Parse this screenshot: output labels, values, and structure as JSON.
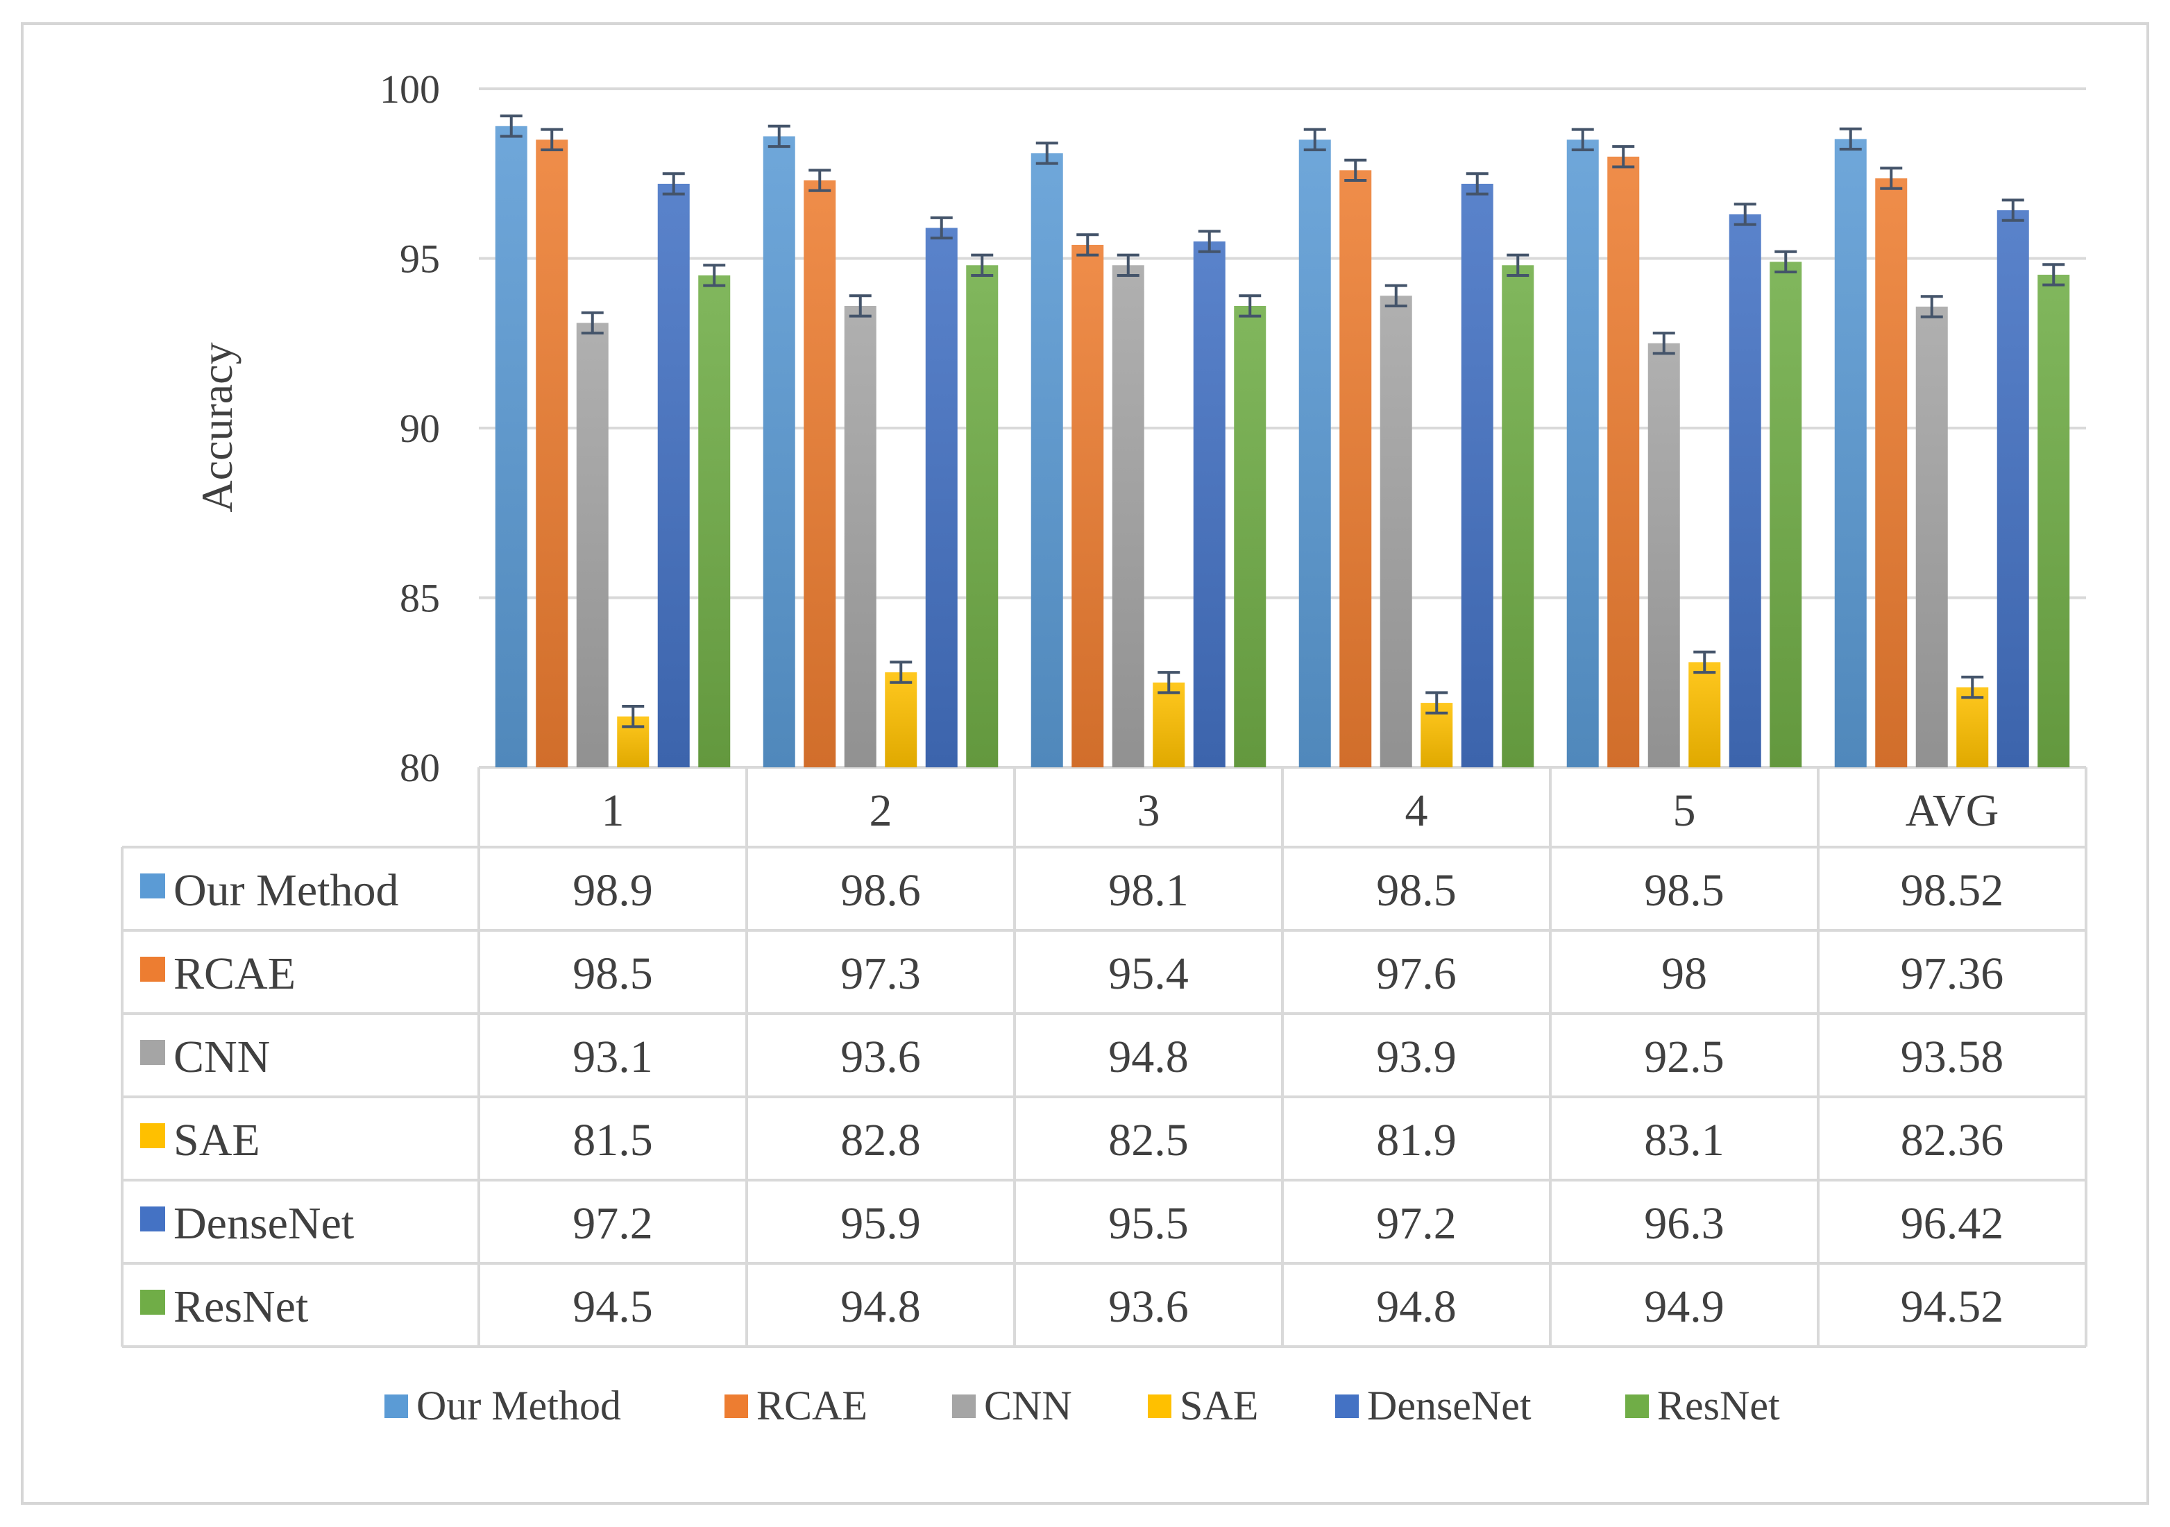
{
  "chart_data": {
    "type": "bar",
    "title": "",
    "xlabel": "",
    "ylabel": "Accuracy",
    "ylim": [
      80,
      100
    ],
    "yticks": [
      80,
      85,
      90,
      95,
      100
    ],
    "grid": true,
    "error_bars": true,
    "legend_position": "bottom",
    "data_table": true,
    "categories": [
      "1",
      "2",
      "3",
      "4",
      "5",
      "AVG"
    ],
    "series": [
      {
        "name": "Our Method",
        "color": "#5B9BD5",
        "values": [
          98.9,
          98.6,
          98.1,
          98.5,
          98.5,
          98.52
        ],
        "display": [
          "98.9",
          "98.6",
          "98.1",
          "98.5",
          "98.5",
          "98.52"
        ]
      },
      {
        "name": "RCAE",
        "color": "#ED7D31",
        "values": [
          98.5,
          97.3,
          95.4,
          97.6,
          98,
          97.36
        ],
        "display": [
          "98.5",
          "97.3",
          "95.4",
          "97.6",
          "98",
          "97.36"
        ]
      },
      {
        "name": "CNN",
        "color": "#A5A5A5",
        "values": [
          93.1,
          93.6,
          94.8,
          93.9,
          92.5,
          93.58
        ],
        "display": [
          "93.1",
          "93.6",
          "94.8",
          "93.9",
          "92.5",
          "93.58"
        ]
      },
      {
        "name": "SAE",
        "color": "#FFC000",
        "values": [
          81.5,
          82.8,
          82.5,
          81.9,
          83.1,
          82.36
        ],
        "display": [
          "81.5",
          "82.8",
          "82.5",
          "81.9",
          "83.1",
          "82.36"
        ]
      },
      {
        "name": "DenseNet",
        "color": "#4472C4",
        "values": [
          97.2,
          95.9,
          95.5,
          97.2,
          96.3,
          96.42
        ],
        "display": [
          "97.2",
          "95.9",
          "95.5",
          "97.2",
          "96.3",
          "96.42"
        ]
      },
      {
        "name": "ResNet",
        "color": "#70AD47",
        "values": [
          94.5,
          94.8,
          93.6,
          94.8,
          94.9,
          94.52
        ],
        "display": [
          "94.5",
          "94.8",
          "93.6",
          "94.8",
          "94.9",
          "94.52"
        ]
      }
    ]
  }
}
